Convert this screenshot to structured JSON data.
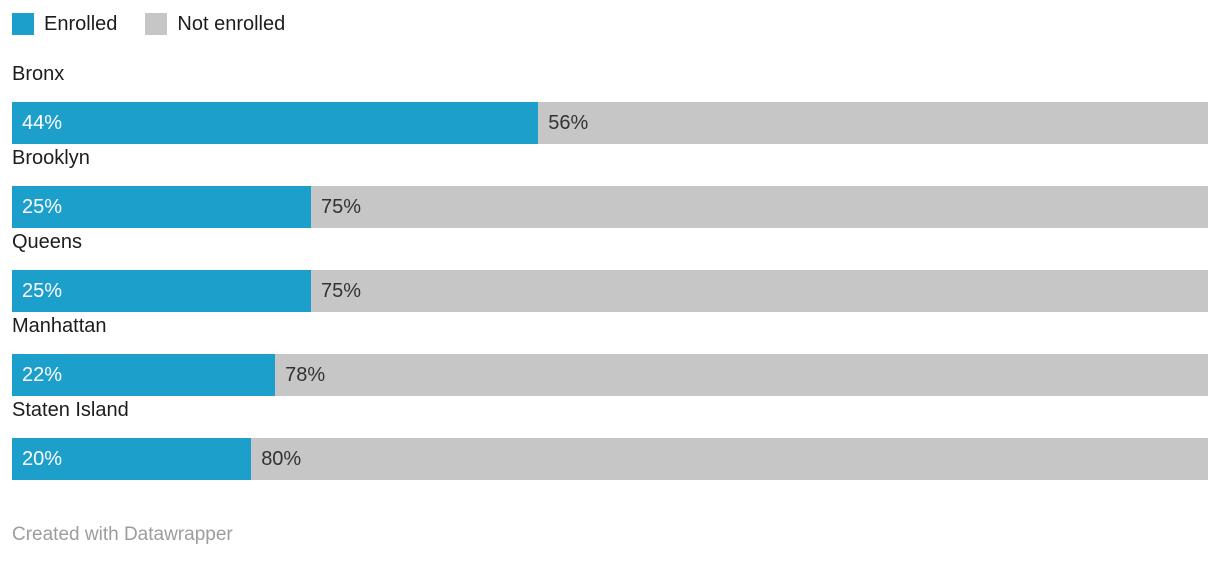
{
  "legend": {
    "items": [
      {
        "label": "Enrolled",
        "color": "#1d9fcc"
      },
      {
        "label": "Not enrolled",
        "color": "#c6c6c6"
      }
    ]
  },
  "footer": {
    "text": "Created with Datawrapper"
  },
  "chart_data": {
    "type": "bar",
    "orientation": "horizontal",
    "stacked": true,
    "unit": "%",
    "categories": [
      "Bronx",
      "Brooklyn",
      "Queens",
      "Manhattan",
      "Staten Island"
    ],
    "series": [
      {
        "name": "Enrolled",
        "color": "#1d9fcc",
        "values": [
          44,
          25,
          25,
          22,
          20
        ]
      },
      {
        "name": "Not enrolled",
        "color": "#c6c6c6",
        "values": [
          56,
          75,
          75,
          78,
          80
        ]
      }
    ],
    "value_labels": [
      [
        "44%",
        "56%"
      ],
      [
        "25%",
        "75%"
      ],
      [
        "25%",
        "75%"
      ],
      [
        "22%",
        "78%"
      ],
      [
        "20%",
        "80%"
      ]
    ],
    "xlim": [
      0,
      100
    ],
    "grid": false,
    "legend_position": "top"
  }
}
